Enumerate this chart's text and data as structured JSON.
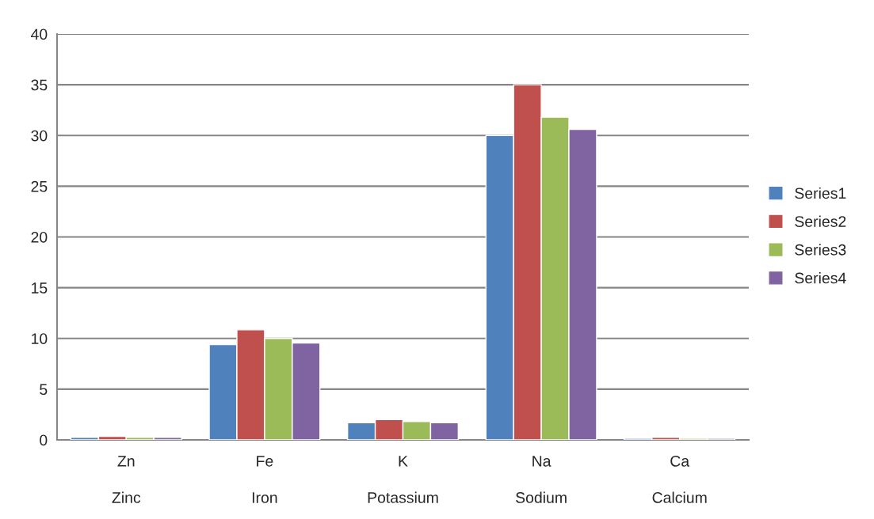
{
  "chart_data": {
    "type": "bar",
    "categories": [
      "Zn\n\nZinc",
      "Fe\n\nIron",
      "K\n\nPotassium",
      "Na\n\nSodium",
      "Ca\n\nCalcium"
    ],
    "series": [
      {
        "name": "Series1",
        "color": "#4f81bd",
        "values": [
          0.25,
          9.4,
          1.7,
          30.0,
          0.15
        ]
      },
      {
        "name": "Series2",
        "color": "#c0504d",
        "values": [
          0.35,
          10.85,
          2.0,
          35.0,
          0.25
        ]
      },
      {
        "name": "Series3",
        "color": "#9bbb59",
        "values": [
          0.25,
          10.0,
          1.8,
          31.8,
          0.15
        ]
      },
      {
        "name": "Series4",
        "color": "#8064a2",
        "values": [
          0.25,
          9.55,
          1.7,
          30.6,
          0.15
        ]
      }
    ],
    "ylim": [
      0,
      40
    ],
    "yticks": [
      0,
      5,
      10,
      15,
      20,
      25,
      30,
      35,
      40
    ],
    "grid": "y",
    "legend": "right"
  }
}
